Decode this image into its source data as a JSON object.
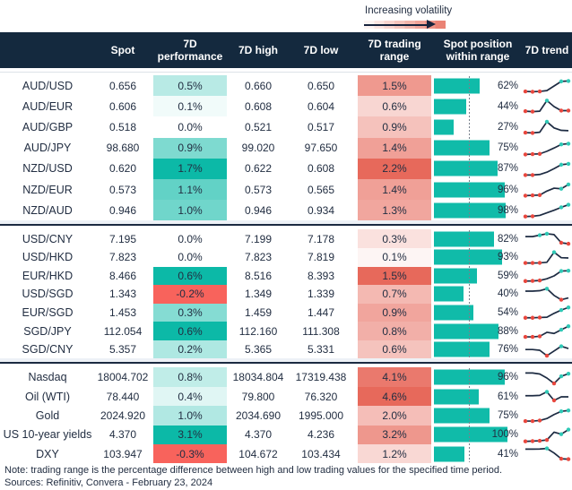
{
  "legend": {
    "label": "Increasing volatility"
  },
  "chart_data": {
    "type": "table",
    "columns": [
      {
        "id": "label",
        "lines": [
          ""
        ]
      },
      {
        "id": "spot",
        "lines": [
          "Spot"
        ]
      },
      {
        "id": "perf",
        "lines": [
          "7D",
          "performance"
        ]
      },
      {
        "id": "high",
        "lines": [
          "7D high"
        ]
      },
      {
        "id": "low",
        "lines": [
          "7D low"
        ]
      },
      {
        "id": "range",
        "lines": [
          "7D trading",
          "range"
        ]
      },
      {
        "id": "pos",
        "lines": [
          "Spot position",
          "within range"
        ]
      },
      {
        "id": "trend",
        "lines": [
          "7D trend"
        ]
      }
    ],
    "groups": [
      {
        "rows": [
          {
            "label": "AUD/USD",
            "spot": "0.656",
            "perf": 0.5,
            "high": "0.660",
            "low": "0.650",
            "range": 1.5,
            "pos": 62,
            "trend": [
              0.12,
              0.1,
              0.12,
              0.18,
              0.5,
              0.82,
              0.85
            ],
            "dots": [
              "r",
              "r",
              "r",
              "",
              "",
              "t",
              "t"
            ]
          },
          {
            "label": "AUD/EUR",
            "spot": "0.606",
            "perf": 0.1,
            "high": "0.608",
            "low": "0.604",
            "range": 0.6,
            "pos": 44,
            "trend": [
              0.18,
              0.15,
              0.18,
              0.92,
              0.5,
              0.22,
              0.22
            ],
            "dots": [
              "r",
              "r",
              "",
              "t",
              "",
              "r",
              "r"
            ]
          },
          {
            "label": "AUD/GBP",
            "spot": "0.518",
            "perf": 0.0,
            "high": "0.521",
            "low": "0.517",
            "range": 0.9,
            "pos": 27,
            "trend": [
              0.12,
              0.1,
              0.15,
              0.88,
              0.45,
              0.28,
              0.26
            ],
            "dots": [
              "r",
              "r",
              "",
              "t",
              "",
              "",
              ""
            ]
          },
          {
            "label": "AUD/JPY",
            "spot": "98.680",
            "perf": 0.9,
            "high": "99.020",
            "low": "97.650",
            "range": 1.4,
            "pos": 75,
            "trend": [
              0.1,
              0.12,
              0.14,
              0.32,
              0.55,
              0.8,
              0.85
            ],
            "dots": [
              "r",
              "r",
              "r",
              "",
              "",
              "t",
              "t"
            ]
          },
          {
            "label": "NZD/USD",
            "spot": "0.620",
            "perf": 1.7,
            "high": "0.622",
            "low": "0.608",
            "range": 2.2,
            "pos": 87,
            "trend": [
              0.1,
              0.1,
              0.14,
              0.3,
              0.55,
              0.82,
              0.88
            ],
            "dots": [
              "r",
              "r",
              "",
              "",
              "",
              "t",
              "t"
            ]
          },
          {
            "label": "NZD/EUR",
            "spot": "0.573",
            "perf": 1.1,
            "high": "0.573",
            "low": "0.565",
            "range": 1.4,
            "pos": 96,
            "trend": [
              0.1,
              0.12,
              0.14,
              0.42,
              0.62,
              0.58,
              0.88
            ],
            "dots": [
              "r",
              "r",
              "r",
              "",
              "",
              "t",
              "t"
            ]
          },
          {
            "label": "NZD/AUD",
            "spot": "0.946",
            "perf": 1.0,
            "high": "0.946",
            "low": "0.934",
            "range": 1.3,
            "pos": 98,
            "trend": [
              0.08,
              0.1,
              0.16,
              0.34,
              0.52,
              0.72,
              0.9
            ],
            "dots": [
              "r",
              "r",
              "",
              "",
              "",
              "t",
              "t"
            ]
          }
        ]
      },
      {
        "rows": [
          {
            "label": "USD/CNY",
            "spot": "7.195",
            "perf": 0.0,
            "high": "7.199",
            "low": "7.178",
            "range": 0.3,
            "pos": 82,
            "trend": [
              0.68,
              0.68,
              0.78,
              0.88,
              0.82,
              0.25,
              0.18
            ],
            "dots": [
              "",
              "",
              "t",
              "t",
              "",
              "r",
              "r"
            ]
          },
          {
            "label": "USD/HKD",
            "spot": "7.823",
            "perf": 0.0,
            "high": "7.823",
            "low": "7.819",
            "range": 0.1,
            "pos": 93,
            "trend": [
              0.15,
              0.15,
              0.16,
              0.2,
              0.9,
              0.52,
              0.5
            ],
            "dots": [
              "r",
              "r",
              "r",
              "",
              "t",
              "",
              ""
            ]
          },
          {
            "label": "EUR/HKD",
            "spot": "8.466",
            "perf": 0.6,
            "high": "8.516",
            "low": "8.393",
            "range": 1.5,
            "pos": 59,
            "trend": [
              0.14,
              0.15,
              0.18,
              0.3,
              0.5,
              0.84,
              0.86
            ],
            "dots": [
              "r",
              "r",
              "r",
              "",
              "",
              "t",
              "t"
            ]
          },
          {
            "label": "USD/SGD",
            "spot": "1.343",
            "perf": -0.2,
            "high": "1.349",
            "low": "1.339",
            "range": 0.7,
            "pos": 40,
            "trend": [
              0.75,
              0.75,
              0.78,
              0.92,
              0.45,
              0.15,
              0.28
            ],
            "dots": [
              "",
              "",
              "",
              "t",
              "",
              "r",
              ""
            ]
          },
          {
            "label": "EUR/SGD",
            "spot": "1.453",
            "perf": 0.3,
            "high": "1.459",
            "low": "1.447",
            "range": 0.9,
            "pos": 54,
            "trend": [
              0.14,
              0.14,
              0.16,
              0.18,
              0.45,
              0.68,
              0.86
            ],
            "dots": [
              "r",
              "r",
              "r",
              "",
              "",
              "t",
              "t"
            ]
          },
          {
            "label": "SGD/JPY",
            "spot": "112.054",
            "perf": 0.6,
            "high": "112.160",
            "low": "111.308",
            "range": 0.8,
            "pos": 88,
            "trend": [
              0.12,
              0.12,
              0.16,
              0.44,
              0.36,
              0.62,
              0.86
            ],
            "dots": [
              "r",
              "r",
              "r",
              "",
              "",
              "t",
              "t"
            ]
          },
          {
            "label": "SGD/CNY",
            "spot": "5.357",
            "perf": 0.2,
            "high": "5.365",
            "low": "5.331",
            "range": 0.6,
            "pos": 76,
            "trend": [
              0.55,
              0.55,
              0.5,
              0.12,
              0.45,
              0.78,
              0.62
            ],
            "dots": [
              "",
              "",
              "",
              "r",
              "",
              "t",
              ""
            ]
          }
        ]
      },
      {
        "rows": [
          {
            "label": "Nasdaq",
            "spot": "18004.702",
            "perf": 0.8,
            "high": "18034.804",
            "low": "17319.438",
            "range": 4.1,
            "pos": 96,
            "trend": [
              0.85,
              0.85,
              0.78,
              0.5,
              0.12,
              0.62,
              0.8
            ],
            "dots": [
              "",
              "",
              "",
              "",
              "r",
              "t",
              "t"
            ]
          },
          {
            "label": "Oil (WTI)",
            "spot": "78.440",
            "perf": 0.4,
            "high": "79.800",
            "low": "76.320",
            "range": 4.6,
            "pos": 61,
            "trend": [
              0.58,
              0.58,
              0.6,
              0.85,
              0.25,
              0.5,
              0.5
            ],
            "dots": [
              "",
              "",
              "",
              "t",
              "r",
              "",
              ""
            ]
          },
          {
            "label": "Gold",
            "spot": "2024.920",
            "perf": 1.0,
            "high": "2034.690",
            "low": "1995.000",
            "range": 2.0,
            "pos": 75,
            "trend": [
              0.12,
              0.12,
              0.16,
              0.3,
              0.58,
              0.8,
              0.86
            ],
            "dots": [
              "r",
              "r",
              "r",
              "",
              "",
              "t",
              "t"
            ]
          },
          {
            "label": "US 10-year yields",
            "spot": "4.370",
            "perf": 3.1,
            "high": "4.370",
            "low": "4.236",
            "range": 3.2,
            "pos": 100,
            "trend": [
              0.08,
              0.1,
              0.12,
              0.18,
              0.72,
              0.58,
              0.9
            ],
            "dots": [
              "r",
              "r",
              "r",
              "r",
              "",
              "t",
              "t"
            ]
          },
          {
            "label": "DXY",
            "spot": "103.947",
            "perf": -0.3,
            "high": "104.672",
            "low": "103.434",
            "range": 1.2,
            "pos": 41,
            "trend": [
              0.85,
              0.85,
              0.86,
              0.9,
              0.58,
              0.18,
              0.15
            ],
            "dots": [
              "",
              "",
              "",
              "t",
              "",
              "r",
              "r"
            ]
          }
        ]
      }
    ]
  },
  "footer": {
    "note": "Note: trading range is the percentage difference between high and low trading values for the specified time period.",
    "sources": "Sources: Refinitiv, Convera - February 23, 2024"
  },
  "colors": {
    "header_bg": "#14293e",
    "text": "#222e42",
    "teal_max": "#0cb9a7",
    "negative_red": "#f8635c",
    "range_red_max": "#e7695b",
    "bar_teal": "#10bba9",
    "dot_red": "#e8473e",
    "dot_teal": "#2fc9b6",
    "line_navy": "#1d2b42",
    "separator_dark": "#1b2a41",
    "separator_light": "#edf1f6"
  }
}
